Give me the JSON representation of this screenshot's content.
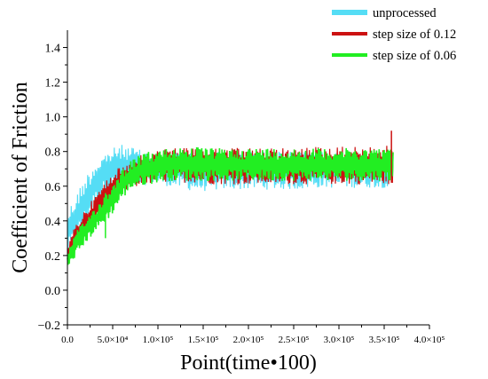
{
  "chart_data": {
    "type": "line",
    "xlabel": "Point(time•100)",
    "ylabel": "Coefficient of Friction",
    "xlim": [
      0,
      400000
    ],
    "ylim": [
      -0.2,
      1.5
    ],
    "x_ticks": [
      {
        "value": 0,
        "label": "0.0"
      },
      {
        "value": 50000,
        "label": "5.0×10⁴"
      },
      {
        "value": 100000,
        "label": "1.0×10⁵"
      },
      {
        "value": 150000,
        "label": "1.5×10⁵"
      },
      {
        "value": 200000,
        "label": "2.0×10⁵"
      },
      {
        "value": 250000,
        "label": "2.5×10⁵"
      },
      {
        "value": 300000,
        "label": "3.0×10⁵"
      },
      {
        "value": 350000,
        "label": "3.5×10⁵"
      },
      {
        "value": 400000,
        "label": "4.0×10⁵"
      }
    ],
    "y_ticks": [
      {
        "value": -0.2,
        "label": "−0.2"
      },
      {
        "value": 0.0,
        "label": "0.0"
      },
      {
        "value": 0.2,
        "label": "0.2"
      },
      {
        "value": 0.4,
        "label": "0.4"
      },
      {
        "value": 0.6,
        "label": "0.6"
      },
      {
        "value": 0.8,
        "label": "0.8"
      },
      {
        "value": 1.0,
        "label": "1.0"
      },
      {
        "value": 1.2,
        "label": "1.2"
      },
      {
        "value": 1.4,
        "label": "1.4"
      }
    ],
    "grid": false,
    "legend_position": "top-right",
    "series": [
      {
        "name": "unprocessed",
        "color": "#55ddf5",
        "band_low": [
          0.2,
          0.28,
          0.38,
          0.48,
          0.55,
          0.58,
          0.59,
          0.6,
          0.6,
          0.61,
          0.61,
          0.6,
          0.59,
          0.58,
          0.57,
          0.57,
          0.57,
          0.58,
          0.58,
          0.58,
          0.58,
          0.58,
          0.58,
          0.58,
          0.58,
          0.58,
          0.58,
          0.59,
          0.59,
          0.59,
          0.59,
          0.59,
          0.59,
          0.59,
          0.59,
          0.59,
          0.59
        ],
        "band_high": [
          0.46,
          0.56,
          0.66,
          0.74,
          0.79,
          0.82,
          0.84,
          0.83,
          0.81,
          0.8,
          0.8,
          0.8,
          0.8,
          0.8,
          0.8,
          0.8,
          0.8,
          0.8,
          0.8,
          0.8,
          0.8,
          0.8,
          0.8,
          0.8,
          0.8,
          0.8,
          0.8,
          0.8,
          0.8,
          0.8,
          0.8,
          0.8,
          0.8,
          0.8,
          0.8,
          0.8,
          0.8
        ]
      },
      {
        "name": "step size of 0.12",
        "color": "#cc1111",
        "band_low": [
          0.14,
          0.25,
          0.32,
          0.38,
          0.44,
          0.52,
          0.56,
          0.58,
          0.6,
          0.61,
          0.62,
          0.62,
          0.62,
          0.62,
          0.62,
          0.62,
          0.61,
          0.61,
          0.61,
          0.61,
          0.61,
          0.61,
          0.61,
          0.61,
          0.61,
          0.61,
          0.61,
          0.61,
          0.61,
          0.61,
          0.61,
          0.61,
          0.61,
          0.61,
          0.61,
          0.61,
          0.61
        ],
        "band_high": [
          0.26,
          0.39,
          0.47,
          0.54,
          0.62,
          0.68,
          0.72,
          0.75,
          0.78,
          0.8,
          0.81,
          0.82,
          0.82,
          0.82,
          0.83,
          0.82,
          0.82,
          0.82,
          0.82,
          0.82,
          0.82,
          0.82,
          0.82,
          0.82,
          0.82,
          0.82,
          0.82,
          0.83,
          0.83,
          0.83,
          0.83,
          0.83,
          0.83,
          0.83,
          0.83,
          0.83,
          0.84
        ]
      },
      {
        "name": "step size of 0.06",
        "color": "#22ee22",
        "band_low": [
          0.12,
          0.2,
          0.27,
          0.33,
          0.38,
          0.44,
          0.52,
          0.58,
          0.6,
          0.61,
          0.62,
          0.63,
          0.63,
          0.63,
          0.63,
          0.63,
          0.63,
          0.63,
          0.63,
          0.63,
          0.63,
          0.63,
          0.63,
          0.63,
          0.63,
          0.63,
          0.63,
          0.63,
          0.63,
          0.63,
          0.63,
          0.63,
          0.63,
          0.63,
          0.63,
          0.63,
          0.63
        ],
        "band_high": [
          0.22,
          0.34,
          0.41,
          0.48,
          0.54,
          0.62,
          0.7,
          0.75,
          0.78,
          0.8,
          0.81,
          0.82,
          0.83,
          0.83,
          0.83,
          0.82,
          0.82,
          0.82,
          0.82,
          0.82,
          0.82,
          0.82,
          0.82,
          0.82,
          0.82,
          0.82,
          0.82,
          0.82,
          0.82,
          0.82,
          0.82,
          0.82,
          0.82,
          0.82,
          0.82,
          0.82,
          0.82
        ]
      }
    ],
    "band_x": [
      0,
      10000,
      20000,
      30000,
      40000,
      50000,
      60000,
      70000,
      80000,
      90000,
      100000,
      110000,
      120000,
      130000,
      140000,
      150000,
      160000,
      170000,
      180000,
      190000,
      200000,
      210000,
      220000,
      230000,
      240000,
      250000,
      260000,
      270000,
      280000,
      290000,
      300000,
      310000,
      320000,
      330000,
      340000,
      350000,
      360000
    ],
    "annotations": [
      {
        "label": "red spike",
        "x": 358000,
        "y": 0.92
      },
      {
        "label": "green dip",
        "x": 42000,
        "y": 0.3
      }
    ]
  }
}
